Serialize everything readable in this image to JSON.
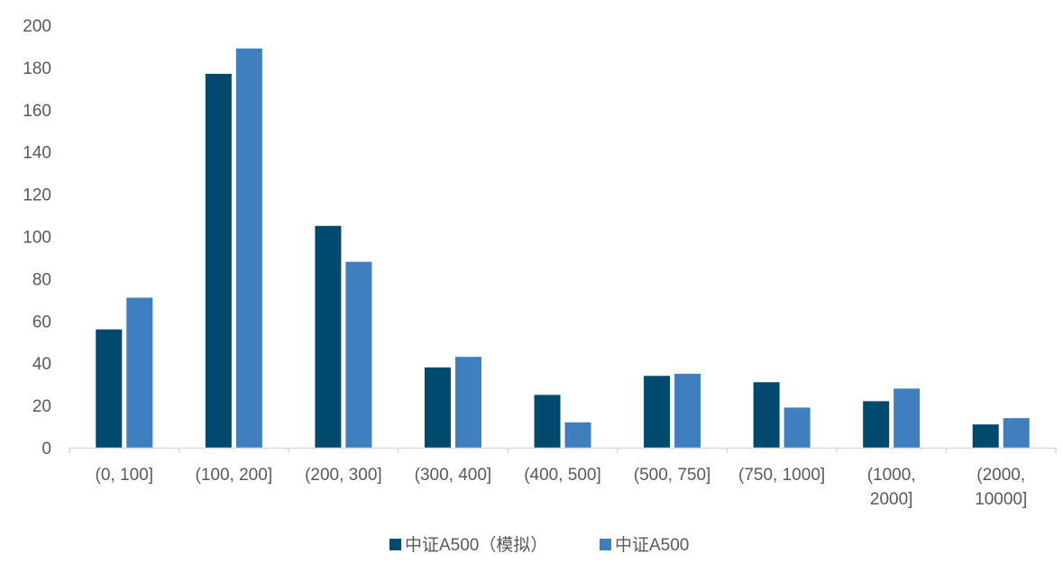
{
  "chart_data": {
    "type": "bar",
    "categories": [
      [
        "(0, 100]"
      ],
      [
        "(100, 200]"
      ],
      [
        "(200, 300]"
      ],
      [
        "(300, 400]"
      ],
      [
        "(400, 500]"
      ],
      [
        "(500, 750]"
      ],
      [
        "(750, 1000]"
      ],
      [
        "(1000,",
        "2000]"
      ],
      [
        "(2000,",
        "10000]"
      ]
    ],
    "series": [
      {
        "name": "中证A500（模拟）",
        "color": "#004A6E",
        "values": [
          56,
          177,
          105,
          38,
          25,
          34,
          31,
          22,
          11
        ]
      },
      {
        "name": "中证A500",
        "color": "#3F7FBF",
        "values": [
          71,
          189,
          88,
          43,
          12,
          35,
          19,
          28,
          14
        ]
      }
    ],
    "ylim": [
      0,
      200
    ],
    "yticks": [
      0,
      20,
      40,
      60,
      80,
      100,
      120,
      140,
      160,
      180,
      200
    ],
    "grid": false,
    "legend_position": "bottom",
    "axis_color": "#D9D9D9",
    "text_color": "#595959"
  }
}
